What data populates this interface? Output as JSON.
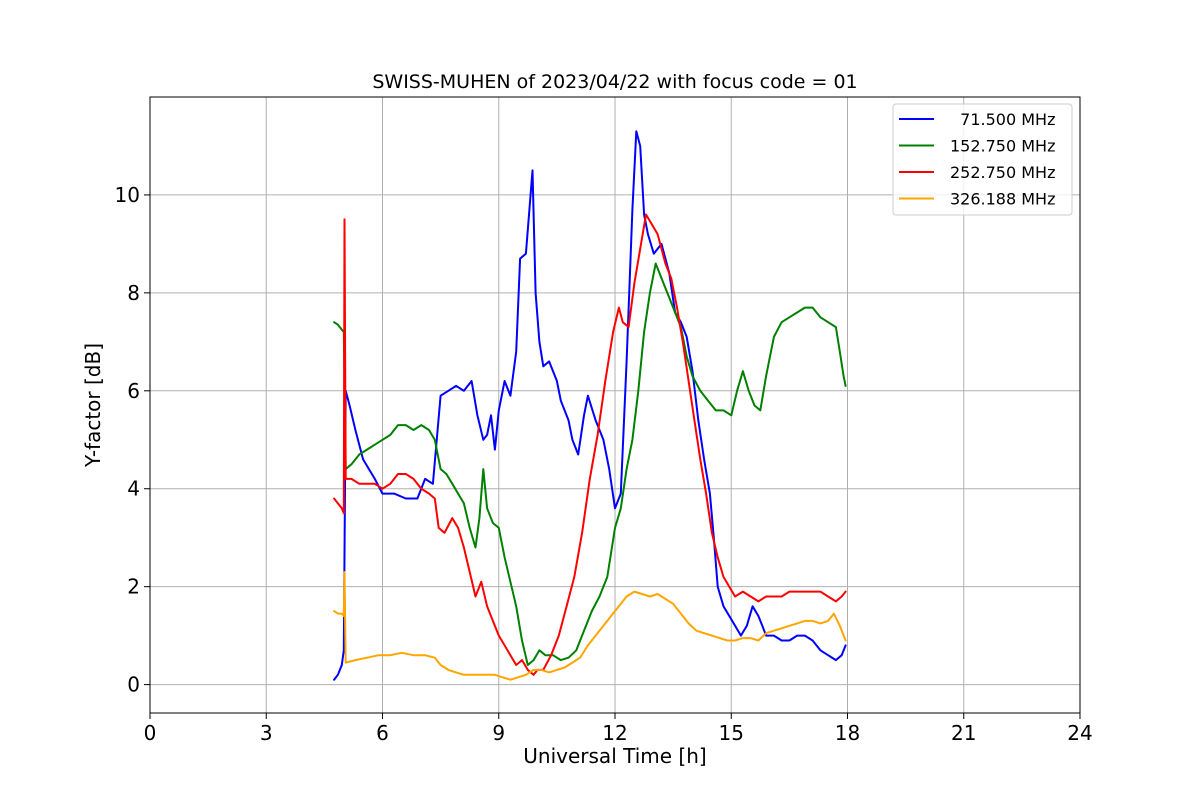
{
  "chart_data": {
    "type": "line",
    "title": "SWISS-MUHEN of 2023/04/22 with focus code = 01",
    "xlabel": "Universal Time [h]",
    "ylabel": "Y-factor [dB]",
    "xlim": [
      0,
      24
    ],
    "ylim": [
      -0.58,
      12.0
    ],
    "xticks": [
      0,
      3,
      6,
      9,
      12,
      15,
      18,
      21,
      24
    ],
    "yticks": [
      0,
      2,
      4,
      6,
      8,
      10
    ],
    "grid": true,
    "legend_position": "top-right",
    "series": [
      {
        "name": "  71.500 MHz",
        "color": "#0000ff",
        "points": [
          [
            4.75,
            0.1
          ],
          [
            4.85,
            0.2
          ],
          [
            4.95,
            0.4
          ],
          [
            5.0,
            0.7
          ],
          [
            5.05,
            6.0
          ],
          [
            5.15,
            5.7
          ],
          [
            5.3,
            5.2
          ],
          [
            5.5,
            4.6
          ],
          [
            5.8,
            4.2
          ],
          [
            6.0,
            3.9
          ],
          [
            6.3,
            3.9
          ],
          [
            6.6,
            3.8
          ],
          [
            6.9,
            3.8
          ],
          [
            7.1,
            4.2
          ],
          [
            7.3,
            4.1
          ],
          [
            7.5,
            5.9
          ],
          [
            7.7,
            6.0
          ],
          [
            7.9,
            6.1
          ],
          [
            8.1,
            6.0
          ],
          [
            8.3,
            6.2
          ],
          [
            8.45,
            5.5
          ],
          [
            8.6,
            5.0
          ],
          [
            8.7,
            5.1
          ],
          [
            8.8,
            5.5
          ],
          [
            8.9,
            4.8
          ],
          [
            9.0,
            5.6
          ],
          [
            9.15,
            6.2
          ],
          [
            9.3,
            5.9
          ],
          [
            9.45,
            6.8
          ],
          [
            9.55,
            8.7
          ],
          [
            9.7,
            8.8
          ],
          [
            9.8,
            9.8
          ],
          [
            9.87,
            10.5
          ],
          [
            9.95,
            8.0
          ],
          [
            10.05,
            7.0
          ],
          [
            10.15,
            6.5
          ],
          [
            10.3,
            6.6
          ],
          [
            10.5,
            6.2
          ],
          [
            10.6,
            5.8
          ],
          [
            10.8,
            5.4
          ],
          [
            10.9,
            5.0
          ],
          [
            11.05,
            4.7
          ],
          [
            11.2,
            5.5
          ],
          [
            11.3,
            5.9
          ],
          [
            11.5,
            5.4
          ],
          [
            11.7,
            5.0
          ],
          [
            11.85,
            4.4
          ],
          [
            12.0,
            3.6
          ],
          [
            12.15,
            3.9
          ],
          [
            12.3,
            6.6
          ],
          [
            12.45,
            9.7
          ],
          [
            12.55,
            11.3
          ],
          [
            12.65,
            11.0
          ],
          [
            12.75,
            9.6
          ],
          [
            12.85,
            9.2
          ],
          [
            13.0,
            8.8
          ],
          [
            13.2,
            9.0
          ],
          [
            13.4,
            8.4
          ],
          [
            13.55,
            7.6
          ],
          [
            13.7,
            7.4
          ],
          [
            13.85,
            7.1
          ],
          [
            14.0,
            6.4
          ],
          [
            14.15,
            5.4
          ],
          [
            14.3,
            4.6
          ],
          [
            14.45,
            3.9
          ],
          [
            14.55,
            3.0
          ],
          [
            14.65,
            2.0
          ],
          [
            14.8,
            1.6
          ],
          [
            14.95,
            1.4
          ],
          [
            15.1,
            1.2
          ],
          [
            15.25,
            1.0
          ],
          [
            15.4,
            1.2
          ],
          [
            15.55,
            1.6
          ],
          [
            15.7,
            1.4
          ],
          [
            15.8,
            1.2
          ],
          [
            15.9,
            1.0
          ],
          [
            16.1,
            1.0
          ],
          [
            16.3,
            0.9
          ],
          [
            16.5,
            0.9
          ],
          [
            16.7,
            1.0
          ],
          [
            16.9,
            1.0
          ],
          [
            17.1,
            0.9
          ],
          [
            17.3,
            0.7
          ],
          [
            17.5,
            0.6
          ],
          [
            17.7,
            0.5
          ],
          [
            17.85,
            0.6
          ],
          [
            17.95,
            0.8
          ]
        ]
      },
      {
        "name": "152.750 MHz",
        "color": "#008000",
        "points": [
          [
            4.75,
            7.4
          ],
          [
            4.85,
            7.35
          ],
          [
            4.95,
            7.25
          ],
          [
            5.0,
            7.2
          ],
          [
            5.05,
            4.4
          ],
          [
            5.2,
            4.5
          ],
          [
            5.4,
            4.7
          ],
          [
            5.6,
            4.8
          ],
          [
            5.8,
            4.9
          ],
          [
            6.0,
            5.0
          ],
          [
            6.2,
            5.1
          ],
          [
            6.4,
            5.3
          ],
          [
            6.6,
            5.3
          ],
          [
            6.8,
            5.2
          ],
          [
            7.0,
            5.3
          ],
          [
            7.2,
            5.2
          ],
          [
            7.35,
            5.0
          ],
          [
            7.5,
            4.4
          ],
          [
            7.65,
            4.3
          ],
          [
            7.8,
            4.1
          ],
          [
            7.95,
            3.9
          ],
          [
            8.1,
            3.7
          ],
          [
            8.25,
            3.2
          ],
          [
            8.4,
            2.8
          ],
          [
            8.5,
            3.4
          ],
          [
            8.6,
            4.4
          ],
          [
            8.7,
            3.6
          ],
          [
            8.85,
            3.3
          ],
          [
            9.0,
            3.2
          ],
          [
            9.15,
            2.6
          ],
          [
            9.3,
            2.1
          ],
          [
            9.45,
            1.6
          ],
          [
            9.6,
            0.9
          ],
          [
            9.75,
            0.4
          ],
          [
            9.9,
            0.5
          ],
          [
            10.05,
            0.7
          ],
          [
            10.2,
            0.6
          ],
          [
            10.4,
            0.6
          ],
          [
            10.6,
            0.5
          ],
          [
            10.8,
            0.55
          ],
          [
            11.0,
            0.7
          ],
          [
            11.2,
            1.1
          ],
          [
            11.4,
            1.5
          ],
          [
            11.6,
            1.8
          ],
          [
            11.8,
            2.2
          ],
          [
            12.0,
            3.2
          ],
          [
            12.15,
            3.6
          ],
          [
            12.3,
            4.4
          ],
          [
            12.45,
            5.0
          ],
          [
            12.6,
            6.0
          ],
          [
            12.75,
            7.2
          ],
          [
            12.9,
            8.0
          ],
          [
            13.05,
            8.6
          ],
          [
            13.2,
            8.3
          ],
          [
            13.4,
            7.9
          ],
          [
            13.55,
            7.6
          ],
          [
            13.7,
            7.3
          ],
          [
            13.85,
            6.7
          ],
          [
            14.0,
            6.3
          ],
          [
            14.2,
            6.0
          ],
          [
            14.4,
            5.8
          ],
          [
            14.6,
            5.6
          ],
          [
            14.8,
            5.6
          ],
          [
            15.0,
            5.5
          ],
          [
            15.15,
            6.0
          ],
          [
            15.3,
            6.4
          ],
          [
            15.45,
            6.0
          ],
          [
            15.6,
            5.7
          ],
          [
            15.75,
            5.6
          ],
          [
            15.9,
            6.3
          ],
          [
            16.1,
            7.1
          ],
          [
            16.3,
            7.4
          ],
          [
            16.5,
            7.5
          ],
          [
            16.7,
            7.6
          ],
          [
            16.9,
            7.7
          ],
          [
            17.1,
            7.7
          ],
          [
            17.3,
            7.5
          ],
          [
            17.5,
            7.4
          ],
          [
            17.7,
            7.3
          ],
          [
            17.8,
            6.8
          ],
          [
            17.9,
            6.3
          ],
          [
            17.95,
            6.1
          ]
        ]
      },
      {
        "name": "252.750 MHz",
        "color": "#ff0000",
        "points": [
          [
            4.75,
            3.8
          ],
          [
            4.85,
            3.7
          ],
          [
            4.95,
            3.6
          ],
          [
            5.0,
            3.5
          ],
          [
            5.02,
            9.5
          ],
          [
            5.05,
            4.2
          ],
          [
            5.2,
            4.2
          ],
          [
            5.4,
            4.1
          ],
          [
            5.6,
            4.1
          ],
          [
            5.8,
            4.1
          ],
          [
            6.0,
            4.0
          ],
          [
            6.2,
            4.1
          ],
          [
            6.4,
            4.3
          ],
          [
            6.6,
            4.3
          ],
          [
            6.8,
            4.2
          ],
          [
            7.0,
            4.0
          ],
          [
            7.2,
            3.9
          ],
          [
            7.35,
            3.8
          ],
          [
            7.45,
            3.2
          ],
          [
            7.6,
            3.1
          ],
          [
            7.8,
            3.4
          ],
          [
            7.95,
            3.2
          ],
          [
            8.1,
            2.8
          ],
          [
            8.25,
            2.3
          ],
          [
            8.4,
            1.8
          ],
          [
            8.55,
            2.1
          ],
          [
            8.7,
            1.6
          ],
          [
            8.85,
            1.3
          ],
          [
            9.0,
            1.0
          ],
          [
            9.15,
            0.8
          ],
          [
            9.3,
            0.6
          ],
          [
            9.45,
            0.4
          ],
          [
            9.6,
            0.5
          ],
          [
            9.75,
            0.3
          ],
          [
            9.9,
            0.2
          ],
          [
            10.0,
            0.3
          ],
          [
            10.15,
            0.3
          ],
          [
            10.35,
            0.6
          ],
          [
            10.55,
            1.0
          ],
          [
            10.75,
            1.6
          ],
          [
            10.95,
            2.2
          ],
          [
            11.15,
            3.1
          ],
          [
            11.35,
            4.2
          ],
          [
            11.55,
            5.1
          ],
          [
            11.75,
            6.2
          ],
          [
            11.95,
            7.2
          ],
          [
            12.1,
            7.7
          ],
          [
            12.2,
            7.4
          ],
          [
            12.35,
            7.3
          ],
          [
            12.5,
            8.2
          ],
          [
            12.65,
            8.9
          ],
          [
            12.8,
            9.6
          ],
          [
            12.95,
            9.4
          ],
          [
            13.1,
            9.2
          ],
          [
            13.3,
            8.6
          ],
          [
            13.45,
            8.3
          ],
          [
            13.6,
            7.7
          ],
          [
            13.75,
            7.0
          ],
          [
            13.9,
            6.2
          ],
          [
            14.05,
            5.4
          ],
          [
            14.2,
            4.6
          ],
          [
            14.35,
            3.9
          ],
          [
            14.5,
            3.1
          ],
          [
            14.65,
            2.6
          ],
          [
            14.8,
            2.2
          ],
          [
            14.95,
            2.0
          ],
          [
            15.1,
            1.8
          ],
          [
            15.3,
            1.9
          ],
          [
            15.5,
            1.8
          ],
          [
            15.7,
            1.7
          ],
          [
            15.9,
            1.8
          ],
          [
            16.1,
            1.8
          ],
          [
            16.3,
            1.8
          ],
          [
            16.5,
            1.9
          ],
          [
            16.7,
            1.9
          ],
          [
            16.9,
            1.9
          ],
          [
            17.1,
            1.9
          ],
          [
            17.3,
            1.9
          ],
          [
            17.5,
            1.8
          ],
          [
            17.7,
            1.7
          ],
          [
            17.85,
            1.8
          ],
          [
            17.95,
            1.9
          ]
        ]
      },
      {
        "name": "326.188 MHz",
        "color": "#ffa500",
        "points": [
          [
            4.75,
            1.5
          ],
          [
            4.85,
            1.45
          ],
          [
            4.95,
            1.45
          ],
          [
            5.0,
            1.4
          ],
          [
            5.02,
            2.3
          ],
          [
            5.05,
            0.45
          ],
          [
            5.3,
            0.5
          ],
          [
            5.6,
            0.55
          ],
          [
            5.9,
            0.6
          ],
          [
            6.2,
            0.6
          ],
          [
            6.5,
            0.65
          ],
          [
            6.8,
            0.6
          ],
          [
            7.1,
            0.6
          ],
          [
            7.35,
            0.55
          ],
          [
            7.5,
            0.4
          ],
          [
            7.7,
            0.3
          ],
          [
            7.9,
            0.25
          ],
          [
            8.1,
            0.2
          ],
          [
            8.3,
            0.2
          ],
          [
            8.5,
            0.2
          ],
          [
            8.7,
            0.2
          ],
          [
            8.9,
            0.2
          ],
          [
            9.1,
            0.15
          ],
          [
            9.3,
            0.1
          ],
          [
            9.5,
            0.15
          ],
          [
            9.7,
            0.2
          ],
          [
            9.9,
            0.3
          ],
          [
            10.1,
            0.3
          ],
          [
            10.3,
            0.25
          ],
          [
            10.5,
            0.3
          ],
          [
            10.7,
            0.35
          ],
          [
            10.9,
            0.45
          ],
          [
            11.1,
            0.55
          ],
          [
            11.3,
            0.8
          ],
          [
            11.5,
            1.0
          ],
          [
            11.7,
            1.2
          ],
          [
            11.9,
            1.4
          ],
          [
            12.1,
            1.6
          ],
          [
            12.3,
            1.8
          ],
          [
            12.5,
            1.9
          ],
          [
            12.7,
            1.85
          ],
          [
            12.9,
            1.8
          ],
          [
            13.1,
            1.85
          ],
          [
            13.3,
            1.75
          ],
          [
            13.5,
            1.65
          ],
          [
            13.7,
            1.45
          ],
          [
            13.9,
            1.25
          ],
          [
            14.1,
            1.1
          ],
          [
            14.3,
            1.05
          ],
          [
            14.5,
            1.0
          ],
          [
            14.7,
            0.95
          ],
          [
            14.9,
            0.9
          ],
          [
            15.1,
            0.9
          ],
          [
            15.3,
            0.95
          ],
          [
            15.5,
            0.95
          ],
          [
            15.7,
            0.9
          ],
          [
            15.9,
            1.05
          ],
          [
            16.1,
            1.1
          ],
          [
            16.3,
            1.15
          ],
          [
            16.5,
            1.2
          ],
          [
            16.7,
            1.25
          ],
          [
            16.9,
            1.3
          ],
          [
            17.1,
            1.3
          ],
          [
            17.3,
            1.25
          ],
          [
            17.5,
            1.3
          ],
          [
            17.65,
            1.45
          ],
          [
            17.8,
            1.2
          ],
          [
            17.95,
            0.9
          ]
        ]
      }
    ]
  }
}
